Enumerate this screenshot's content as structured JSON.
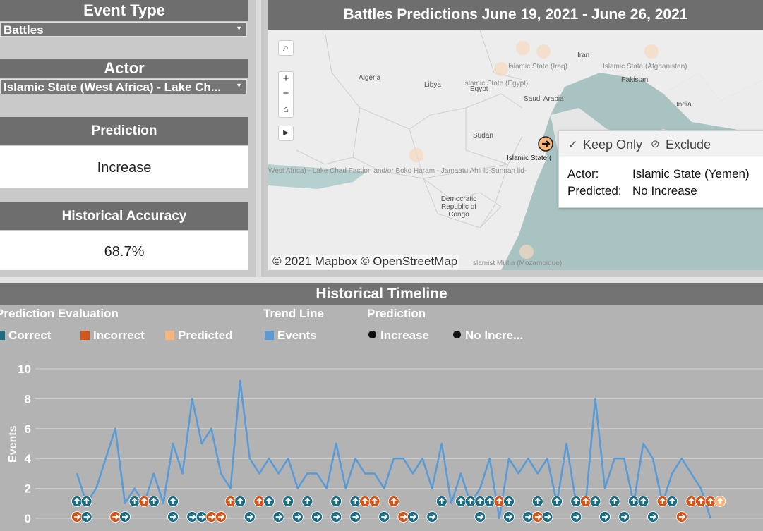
{
  "filters": {
    "event_type": {
      "label": "Event Type",
      "value": "Battles"
    },
    "actor": {
      "label": "Actor",
      "value": "Islamic State (West Africa) - Lake Ch..."
    }
  },
  "cards": {
    "prediction": {
      "label": "Prediction",
      "value": "Increase"
    },
    "accuracy": {
      "label": "Historical Accuracy",
      "value": "68.7%"
    }
  },
  "map": {
    "title": "Battles Predictions June 19, 2021 - June 26, 2021",
    "attribution": "© 2021 Mapbox © OpenStreetMap",
    "countries": [
      "Algeria",
      "Libya",
      "Egypt",
      "Saudi Arabia",
      "Iran",
      "Pakistan",
      "India",
      "Sudan",
      "Democratic Republic of Congo"
    ],
    "faint_labels": [
      "Islamic State (Iraq)",
      "Islamic State (Afghanistan)",
      "Islamic State (Egypt)",
      "West Africa) - Lake Chad Faction and/or Boko Haram - Jamaatu Ahli is-Sunnah lid-",
      "slamist Militia (Mozambique)"
    ],
    "selected_label": "Islamic State (",
    "tooltip": {
      "keep_only": "Keep Only",
      "exclude": "Exclude",
      "actor_key": "Actor:",
      "actor_value": "Islamic State (Yemen)",
      "predicted_key": "Predicted:",
      "predicted_value": "No Increase"
    }
  },
  "timeline": {
    "title": "Historical Timeline",
    "legend": {
      "evaluation_title": "Prediction Evaluation",
      "correct": "Correct",
      "incorrect": "Incorrect",
      "predicted": "Predicted",
      "trend_title": "Trend Line",
      "events": "Events",
      "prediction_title": "Prediction",
      "increase": "Increase",
      "no_increase": "No Incre..."
    },
    "colors": {
      "correct": "#1f6b80",
      "incorrect": "#d2561c",
      "predicted": "#f7b57c",
      "events": "#5b9bd5"
    }
  },
  "chart_data": {
    "type": "line",
    "ylabel": "Events",
    "ylim": [
      0,
      10
    ],
    "yticks": [
      0,
      2,
      4,
      6,
      8,
      10
    ],
    "series": [
      {
        "name": "Events",
        "values": [
          3,
          1,
          2,
          4,
          6,
          1,
          2,
          1,
          3,
          1,
          5,
          3,
          8,
          5,
          6,
          3,
          2,
          9.2,
          4,
          3,
          4,
          3,
          4,
          2,
          3,
          3,
          2,
          5,
          2,
          4,
          3,
          3,
          2,
          4,
          4,
          3,
          4,
          2,
          5,
          1,
          3,
          1,
          2,
          4,
          0,
          4,
          3,
          4,
          3,
          4,
          1,
          5,
          1,
          1,
          8,
          2,
          4,
          4,
          1,
          5,
          4,
          1,
          3,
          4,
          3,
          2,
          0
        ]
      }
    ],
    "markers": {
      "upper_row": [
        "c",
        "c",
        "",
        "",
        "",
        "",
        "c",
        "i",
        "c",
        "",
        "c",
        "",
        "",
        "",
        "",
        "",
        "i",
        "c",
        "",
        "i",
        "c",
        "",
        "c",
        "",
        "c",
        "",
        "",
        "c",
        "",
        "c",
        "i",
        "i",
        "",
        "i",
        "",
        "",
        "",
        "",
        "c",
        "",
        "c",
        "c",
        "c",
        "c",
        "i",
        "c",
        "",
        "",
        "c",
        "",
        "c",
        "",
        "c",
        "i",
        "c",
        "",
        "c",
        "",
        "c",
        "c",
        "",
        "i",
        "c",
        "",
        "i",
        "i",
        "i",
        "p"
      ],
      "lower_row": [
        "i",
        "c",
        "",
        "",
        "i",
        "c",
        "",
        "",
        "",
        "",
        "c",
        "",
        "c",
        "c",
        "i",
        "i",
        "",
        "",
        "c",
        "",
        "",
        "c",
        "",
        "c",
        "",
        "c",
        "",
        "c",
        "",
        "c",
        "",
        "",
        "c",
        "",
        "i",
        "c",
        "",
        "c",
        "",
        "",
        "",
        "",
        "c",
        "",
        "",
        "c",
        "",
        "c",
        "i",
        "c",
        "",
        "",
        "c",
        "",
        "",
        "c",
        "",
        "c",
        "",
        "",
        "c",
        "",
        "",
        "i"
      ],
      "upper_dirs": "up",
      "lower_dirs": "right"
    }
  }
}
